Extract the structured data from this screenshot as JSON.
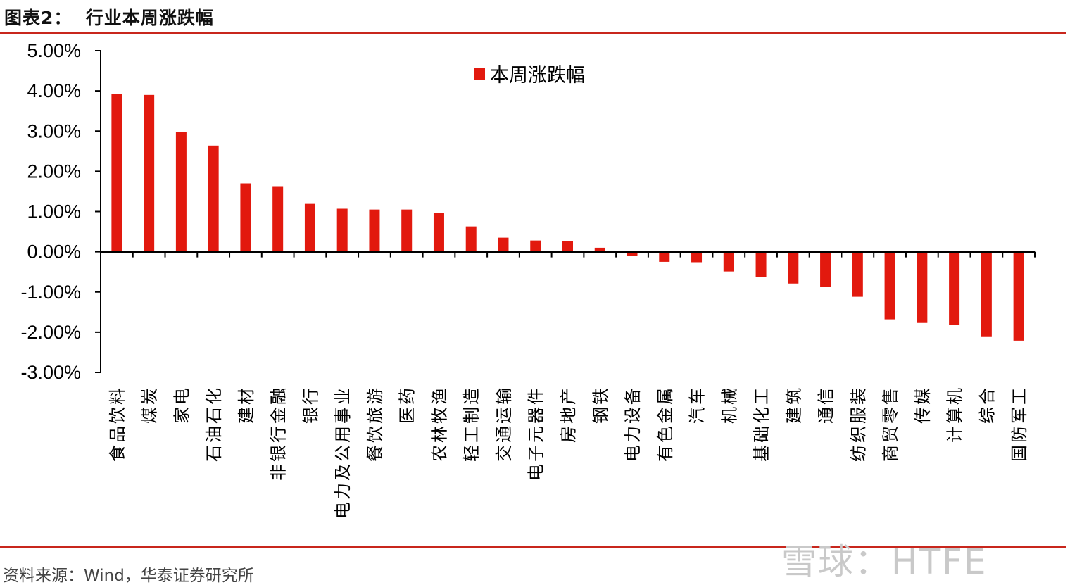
{
  "figure_title": "图表2：  行业本周涨跌幅",
  "source": "资料来源：Wind，华泰证券研究所",
  "watermark": "雪球：HTFE",
  "chart_data": {
    "type": "bar",
    "title": "",
    "xlabel": "",
    "ylabel": "",
    "ylim": [
      -3,
      5
    ],
    "yticks": [
      5,
      4,
      3,
      2,
      1,
      0,
      -1,
      -2,
      -3
    ],
    "ytick_labels": [
      "5.00%",
      "4.00%",
      "3.00%",
      "2.00%",
      "1.00%",
      "0.00%",
      "-1.00%",
      "-2.00%",
      "-3.00%"
    ],
    "legend": {
      "position": "top-center",
      "entries": [
        "本周涨跌幅"
      ]
    },
    "grid": false,
    "bar_color": "#e2190e",
    "categories": [
      "食品饮料",
      "煤炭",
      "家电",
      "石油石化",
      "建材",
      "非银行金融",
      "银行",
      "电力及公用事业",
      "餐饮旅游",
      "医药",
      "农林牧渔",
      "轻工制造",
      "交通运输",
      "电子元器件",
      "房地产",
      "钢铁",
      "电力设备",
      "有色金属",
      "汽车",
      "机械",
      "基础化工",
      "建筑",
      "通信",
      "纺织服装",
      "商贸零售",
      "传媒",
      "计算机",
      "综合",
      "国防军工"
    ],
    "series": [
      {
        "name": "本周涨跌幅",
        "values": [
          3.92,
          3.9,
          2.98,
          2.64,
          1.7,
          1.63,
          1.19,
          1.07,
          1.05,
          1.05,
          0.96,
          0.63,
          0.35,
          0.28,
          0.26,
          0.1,
          -0.1,
          -0.25,
          -0.26,
          -0.49,
          -0.63,
          -0.79,
          -0.88,
          -1.12,
          -1.68,
          -1.77,
          -1.82,
          -2.12,
          -2.21
        ]
      }
    ]
  }
}
